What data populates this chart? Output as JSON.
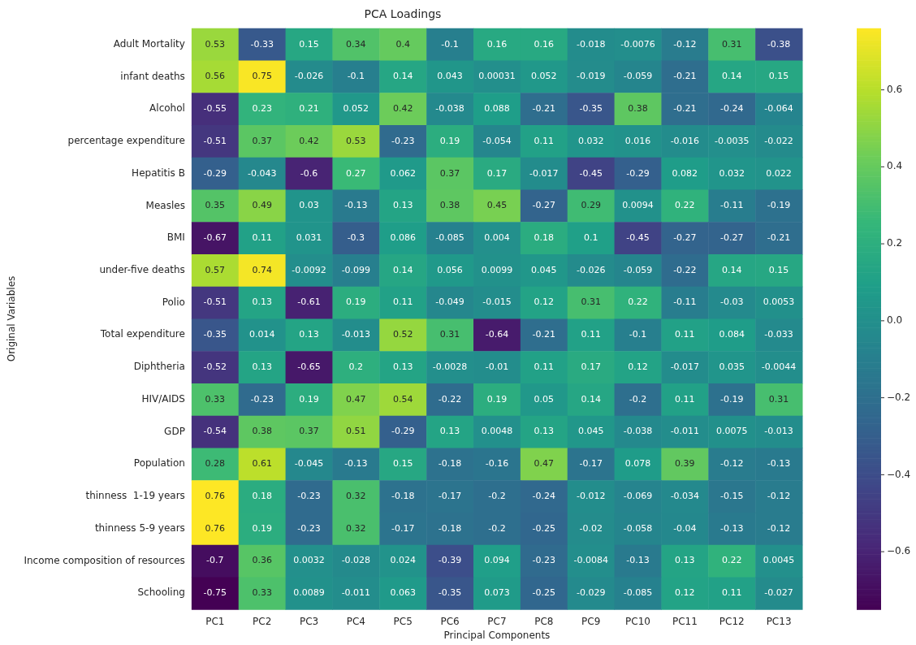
{
  "chart_data": {
    "type": "heatmap",
    "title": "PCA Loadings",
    "xlabel": "Principal Components",
    "ylabel": "Original Variables",
    "categories": [
      "PC1",
      "PC2",
      "PC3",
      "PC4",
      "PC5",
      "PC6",
      "PC7",
      "PC8",
      "PC9",
      "PC10",
      "PC11",
      "PC12",
      "PC13"
    ],
    "y_categories": [
      "Adult Mortality",
      "infant deaths",
      "Alcohol",
      "percentage expenditure",
      "Hepatitis B",
      "Measles",
      "BMI",
      "under-five deaths",
      "Polio",
      "Total expenditure",
      "Diphtheria",
      "HIV/AIDS",
      "GDP",
      "Population",
      "thinness  1-19 years",
      "thinness 5-9 years",
      "Income composition of resources",
      "Schooling"
    ],
    "cells": [
      [
        0.53,
        -0.33,
        0.15,
        0.34,
        0.4,
        -0.1,
        0.16,
        0.16,
        -0.018,
        -0.0076,
        -0.12,
        0.31,
        -0.38
      ],
      [
        0.56,
        0.75,
        -0.026,
        -0.1,
        0.14,
        0.043,
        0.00031,
        0.052,
        -0.019,
        -0.059,
        -0.21,
        0.14,
        0.15
      ],
      [
        -0.55,
        0.23,
        0.21,
        0.052,
        0.42,
        -0.038,
        0.088,
        -0.21,
        -0.35,
        0.38,
        -0.21,
        -0.24,
        -0.064
      ],
      [
        -0.51,
        0.37,
        0.42,
        0.53,
        -0.23,
        0.19,
        -0.054,
        0.11,
        0.032,
        0.016,
        -0.016,
        -0.0035,
        -0.022
      ],
      [
        -0.29,
        -0.043,
        -0.6,
        0.27,
        0.062,
        0.37,
        0.17,
        -0.017,
        -0.45,
        -0.29,
        0.082,
        0.032,
        0.022
      ],
      [
        0.35,
        0.49,
        0.03,
        -0.13,
        0.13,
        0.38,
        0.45,
        -0.27,
        0.29,
        0.0094,
        0.22,
        -0.11,
        -0.19
      ],
      [
        -0.67,
        0.11,
        0.031,
        -0.3,
        0.086,
        -0.085,
        0.004,
        0.18,
        0.1,
        -0.45,
        -0.27,
        -0.27,
        -0.21
      ],
      [
        0.57,
        0.74,
        -0.0092,
        -0.099,
        0.14,
        0.056,
        0.0099,
        0.045,
        -0.026,
        -0.059,
        -0.22,
        0.14,
        0.15
      ],
      [
        -0.51,
        0.13,
        -0.61,
        0.19,
        0.11,
        -0.049,
        -0.015,
        0.12,
        0.31,
        0.22,
        -0.11,
        -0.03,
        0.0053
      ],
      [
        -0.35,
        0.014,
        0.13,
        -0.013,
        0.52,
        0.31,
        -0.64,
        -0.21,
        0.11,
        -0.1,
        0.11,
        0.084,
        -0.033
      ],
      [
        -0.52,
        0.13,
        -0.65,
        0.2,
        0.13,
        -0.0028,
        -0.01,
        0.11,
        0.17,
        0.12,
        -0.017,
        0.035,
        -0.0044
      ],
      [
        0.33,
        -0.23,
        0.19,
        0.47,
        0.54,
        -0.22,
        0.19,
        0.05,
        0.14,
        -0.2,
        0.11,
        -0.19,
        0.31
      ],
      [
        -0.54,
        0.38,
        0.37,
        0.51,
        -0.29,
        0.13,
        0.0048,
        0.13,
        0.045,
        -0.038,
        -0.011,
        0.0075,
        -0.013
      ],
      [
        0.28,
        0.61,
        -0.045,
        -0.13,
        0.15,
        -0.18,
        -0.16,
        0.47,
        -0.17,
        0.078,
        0.39,
        -0.12,
        -0.13
      ],
      [
        0.76,
        0.18,
        -0.23,
        0.32,
        -0.18,
        -0.17,
        -0.2,
        -0.24,
        -0.012,
        -0.069,
        -0.034,
        -0.15,
        -0.12
      ],
      [
        0.76,
        0.19,
        -0.23,
        0.32,
        -0.17,
        -0.18,
        -0.2,
        -0.25,
        -0.02,
        -0.058,
        -0.04,
        -0.13,
        -0.12
      ],
      [
        -0.7,
        0.36,
        0.0032,
        -0.028,
        0.024,
        -0.39,
        0.094,
        -0.23,
        -0.0084,
        -0.13,
        0.13,
        0.22,
        0.0045
      ],
      [
        -0.75,
        0.33,
        0.0089,
        -0.011,
        0.063,
        -0.35,
        0.073,
        -0.25,
        -0.029,
        -0.085,
        0.12,
        0.11,
        -0.027
      ]
    ],
    "data_labels": true,
    "clim": [
      -0.75,
      0.76
    ],
    "cticks": [
      {
        "value": -0.6,
        "label": "−0.6"
      },
      {
        "value": -0.4,
        "label": "−0.4"
      },
      {
        "value": -0.2,
        "label": "−0.2"
      },
      {
        "value": 0,
        "label": "0.0"
      },
      {
        "value": 0.2,
        "label": "0.2"
      },
      {
        "value": 0.4,
        "label": "0.4"
      },
      {
        "value": 0.6,
        "label": "0.6"
      }
    ]
  }
}
